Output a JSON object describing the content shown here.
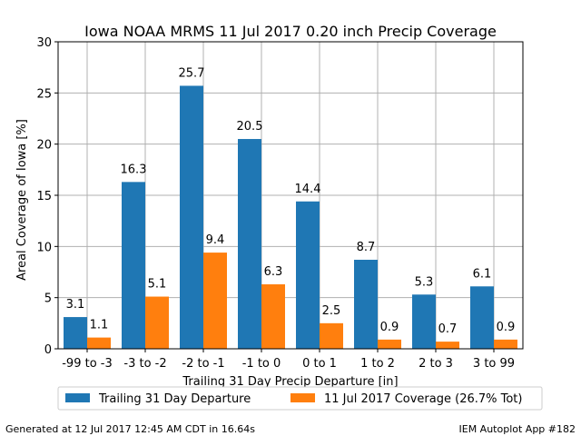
{
  "chart_data": {
    "type": "bar",
    "title": "Iowa NOAA MRMS 11 Jul 2017 0.20 inch Precip Coverage",
    "xlabel": "Trailing 31 Day Precip Departure [in]",
    "ylabel": "Areal Coverage of Iowa [%]",
    "ylim": [
      0,
      30
    ],
    "yticks": [
      0,
      5,
      10,
      15,
      20,
      25,
      30
    ],
    "grid": true,
    "legend_position": "bottom",
    "categories": [
      "-99 to -3",
      "-3 to -2",
      "-2 to -1",
      "-1 to 0",
      "0 to 1",
      "1 to 2",
      "2 to 3",
      "3 to 99"
    ],
    "series": [
      {
        "name": "Trailing 31 Day Departure",
        "color": "#1f77b4",
        "values": [
          3.1,
          16.3,
          25.7,
          20.5,
          14.4,
          8.7,
          5.3,
          6.1
        ],
        "labels": [
          "3.1",
          "16.3",
          "25.7",
          "20.5",
          "14.4",
          "8.7",
          "5.3",
          "6.1"
        ]
      },
      {
        "name": "11 Jul 2017 Coverage (26.7% Tot)",
        "color": "#ff7f0e",
        "values": [
          1.1,
          5.1,
          9.4,
          6.3,
          2.5,
          0.9,
          0.7,
          0.9
        ],
        "labels": [
          "1.1",
          "5.1",
          "9.4",
          "6.3",
          "2.5",
          "0.9",
          "0.7",
          "0.9"
        ]
      }
    ]
  },
  "footer": {
    "left": "Generated at 12 Jul 2017 12:45 AM CDT in 16.64s",
    "right": "IEM Autoplot App #182"
  }
}
